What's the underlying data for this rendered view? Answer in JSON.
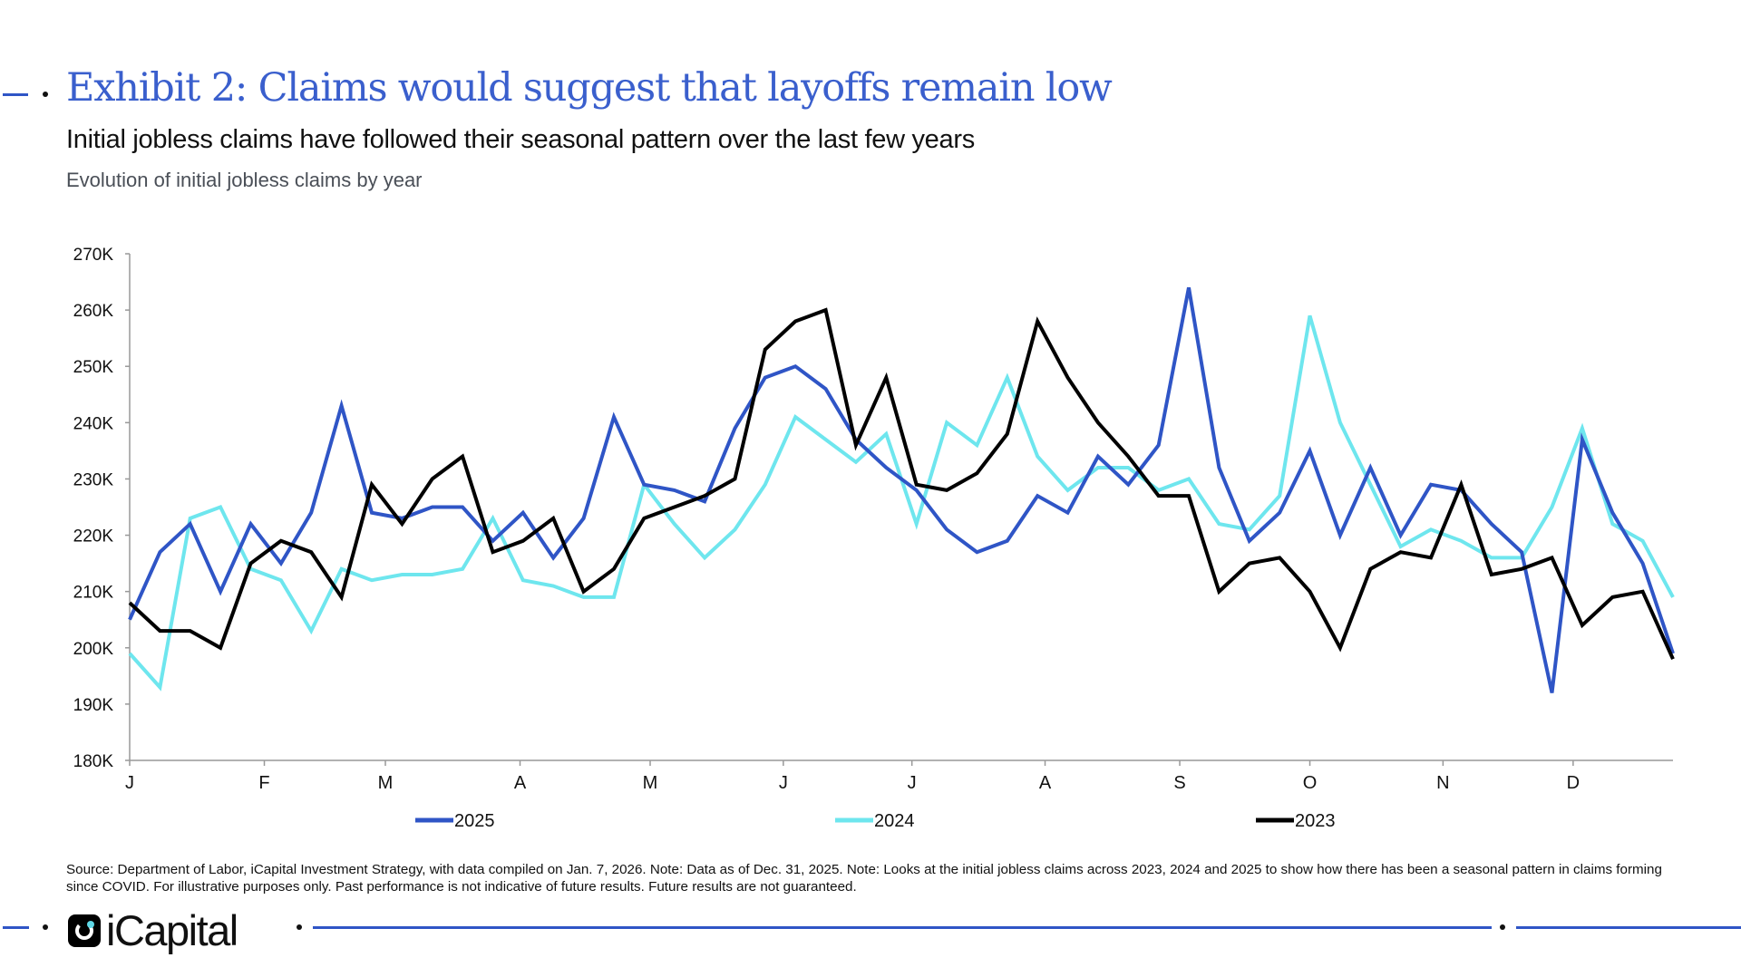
{
  "header": {
    "title": "Exhibit 2: Claims would suggest that layoffs remain low",
    "subtitle": "Initial jobless claims have followed their seasonal pattern over the last few years",
    "description": "Evolution of initial jobless claims by year"
  },
  "footer": {
    "note": "Source: Department of Labor, iCapital Investment Strategy, with data compiled on Jan. 7, 2026. Note: Data as of Dec. 31, 2025. Note: Looks at the initial jobless claims across 2023, 2024 and 2025 to show how there has been a seasonal pattern in claims forming since COVID. For illustrative purposes only. Past performance is not indicative of future results. Future results are not guaranteed.",
    "logo_text": "iCapital",
    "accent_color": "#2f55c6"
  },
  "chart_data": {
    "type": "line",
    "title": "",
    "xlabel": "",
    "ylabel": "",
    "ylim": [
      180000,
      270000
    ],
    "yticks": [
      180000,
      190000,
      200000,
      210000,
      220000,
      230000,
      240000,
      250000,
      260000,
      270000
    ],
    "ytick_labels": [
      "180K",
      "190K",
      "200K",
      "210K",
      "220K",
      "230K",
      "240K",
      "250K",
      "260K",
      "270K"
    ],
    "x_unit": "week of year",
    "xlim": [
      1,
      52
    ],
    "month_ticks": [
      {
        "label": "J",
        "week": 1
      },
      {
        "label": "F",
        "week": 5.45
      },
      {
        "label": "M",
        "week": 9.45
      },
      {
        "label": "A",
        "week": 13.9
      },
      {
        "label": "M",
        "week": 18.2
      },
      {
        "label": "J",
        "week": 22.6
      },
      {
        "label": "J",
        "week": 26.85
      },
      {
        "label": "A",
        "week": 31.25
      },
      {
        "label": "S",
        "week": 35.7
      },
      {
        "label": "O",
        "week": 40
      },
      {
        "label": "N",
        "week": 44.4
      },
      {
        "label": "D",
        "week": 48.7
      }
    ],
    "grid": false,
    "legend": "bottom",
    "series": [
      {
        "name": "2025",
        "color": "#2f55c6",
        "values": [
          205,
          217,
          222,
          210,
          222,
          215,
          224,
          243,
          224,
          223,
          225,
          225,
          219,
          224,
          216,
          223,
          241,
          229,
          228,
          226,
          239,
          248,
          250,
          246,
          237,
          232,
          228,
          221,
          217,
          219,
          227,
          224,
          234,
          229,
          236,
          264,
          232,
          219,
          224,
          235,
          220,
          232,
          220,
          229,
          228,
          222,
          217,
          192,
          237,
          224,
          215,
          199
        ]
      },
      {
        "name": "2024",
        "color": "#6ee6ee",
        "values": [
          199,
          193,
          223,
          225,
          214,
          212,
          203,
          214,
          212,
          213,
          213,
          214,
          223,
          212,
          211,
          209,
          209,
          229,
          222,
          216,
          221,
          229,
          241,
          237,
          233,
          238,
          222,
          240,
          236,
          248,
          234,
          228,
          232,
          232,
          228,
          230,
          222,
          221,
          227,
          259,
          240,
          229,
          218,
          221,
          219,
          216,
          216,
          225,
          239,
          222,
          219,
          209
        ]
      },
      {
        "name": "2023",
        "color": "#000000",
        "values": [
          208,
          203,
          203,
          200,
          215,
          219,
          217,
          209,
          229,
          222,
          230,
          234,
          217,
          219,
          223,
          210,
          214,
          223,
          225,
          227,
          230,
          253,
          258,
          260,
          236,
          248,
          229,
          228,
          231,
          238,
          258,
          248,
          240,
          234,
          227,
          227,
          210,
          215,
          216,
          210,
          200,
          214,
          217,
          216,
          229,
          213,
          214,
          216,
          204,
          209,
          210,
          198
        ]
      }
    ],
    "value_unit": "thousands"
  }
}
